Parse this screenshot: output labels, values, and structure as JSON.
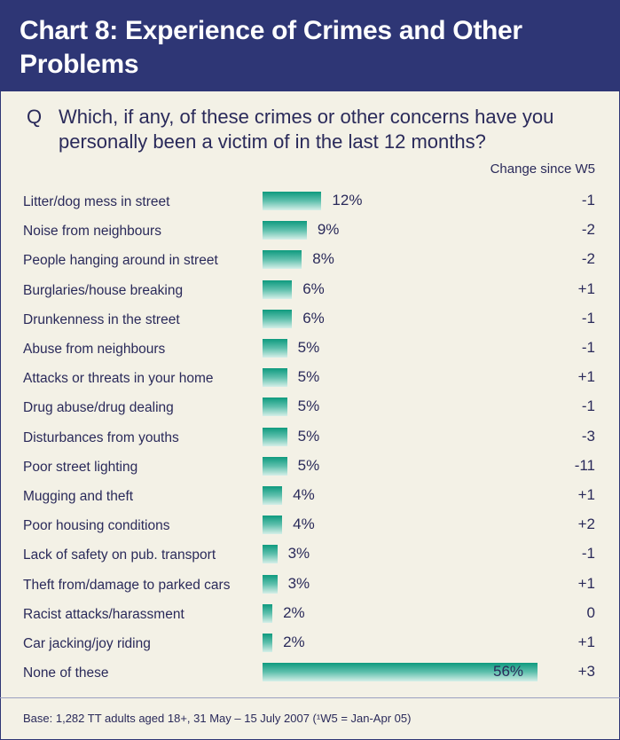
{
  "header": {
    "title": "Chart 8: Experience of Crimes and Other Problems"
  },
  "question": {
    "prefix": "Q",
    "text": "Which, if any, of these crimes or other concerns have you personally been a victim of in the last 12 months?"
  },
  "change_header": "Change since W5",
  "base_note": "Base: 1,282 TT adults aged 18+, 31 May – 15 July 2007 (¹W5 = Jan-Apr 05)",
  "colors": {
    "header_bg": "#2e3675",
    "bar": "#1fa68a",
    "background": "#f3f1e6"
  },
  "chart_data": {
    "type": "bar",
    "orientation": "horizontal",
    "unit": "%",
    "categories": [
      "Litter/dog mess in street",
      "Noise from neighbours",
      "People hanging around in street",
      "Burglaries/house breaking",
      "Drunkenness in the street",
      "Abuse from neighbours",
      "Attacks or threats in your home",
      "Drug abuse/drug dealing",
      "Disturbances from youths",
      "Poor street lighting",
      "Mugging and theft",
      "Poor housing conditions",
      "Lack of safety on pub. transport",
      "Theft from/damage to parked cars",
      "Racist attacks/harassment",
      "Car jacking/joy riding",
      "None of these"
    ],
    "values": [
      12,
      9,
      8,
      6,
      6,
      5,
      5,
      5,
      5,
      5,
      4,
      4,
      3,
      3,
      2,
      2,
      56
    ],
    "value_labels": [
      "12%",
      "9%",
      "8%",
      "6%",
      "6%",
      "5%",
      "5%",
      "5%",
      "5%",
      "5%",
      "4%",
      "4%",
      "3%",
      "3%",
      "2%",
      "2%",
      "56%"
    ],
    "change": [
      "-1",
      "-2",
      "-2",
      "+1",
      "-1",
      "-1",
      "+1",
      "-1",
      "-3",
      "-11",
      "+1",
      "+2",
      "-1",
      "+1",
      "0",
      "+1",
      "+3"
    ],
    "xlim": [
      0,
      56
    ]
  }
}
